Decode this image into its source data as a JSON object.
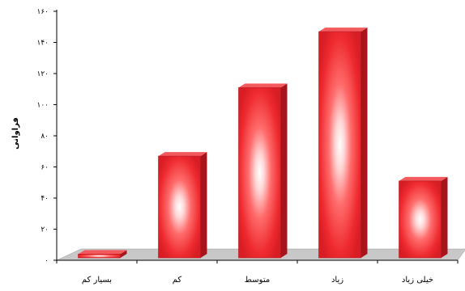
{
  "chart_data": {
    "type": "bar",
    "title": "",
    "xlabel": "",
    "ylabel": "فراوانی",
    "categories": [
      "بسیار کم",
      "کم",
      "متوسط",
      "زیاد",
      "خیلی زیاد"
    ],
    "values": [
      5,
      68,
      112,
      148,
      52
    ],
    "ylim": [
      0,
      160
    ],
    "yticks": [
      0,
      20,
      40,
      60,
      80,
      100,
      120,
      140,
      160
    ],
    "ytick_labels": [
      "۰",
      "۲۰",
      "۴۰",
      "۶۰",
      "۸۰",
      "۱۰۰",
      "۱۲۰",
      "۱۴۰",
      "۱۶۰"
    ],
    "style": "3d-bar",
    "colors": {
      "bar": "#e8222b",
      "bar_light": "#ffffff",
      "floor": "#c8c8c8",
      "axis": "#000000"
    },
    "grid": false,
    "legend": "none"
  }
}
